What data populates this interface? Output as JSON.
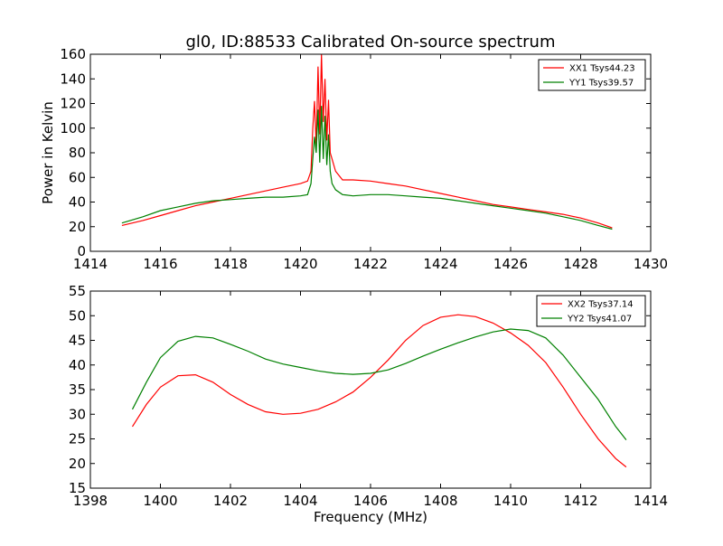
{
  "title": "gl0, ID:88533 Calibrated On-source spectrum",
  "chart_data": [
    {
      "type": "line",
      "title": "gl0, ID:88533 Calibrated On-source spectrum",
      "xlabel": "",
      "ylabel": "Power in Kelvin",
      "xlim": [
        1414,
        1430
      ],
      "ylim": [
        0,
        160
      ],
      "xticks": [
        1414,
        1416,
        1418,
        1420,
        1422,
        1424,
        1426,
        1428,
        1430
      ],
      "yticks": [
        0,
        20,
        40,
        60,
        80,
        100,
        120,
        140,
        160
      ],
      "grid": false,
      "legend_position": "top-right",
      "series": [
        {
          "name": "XX1 Tsys44.23",
          "color": "#ff0000",
          "x": [
            1414.9,
            1415.5,
            1416.0,
            1416.5,
            1417.0,
            1417.5,
            1418.0,
            1418.5,
            1419.0,
            1419.5,
            1420.0,
            1420.2,
            1420.3,
            1420.35,
            1420.4,
            1420.45,
            1420.5,
            1420.55,
            1420.6,
            1420.65,
            1420.7,
            1420.75,
            1420.8,
            1420.85,
            1420.9,
            1421.0,
            1421.2,
            1421.5,
            1422.0,
            1422.5,
            1423.0,
            1423.5,
            1424.0,
            1424.5,
            1425.0,
            1425.5,
            1426.0,
            1426.5,
            1427.0,
            1427.5,
            1428.0,
            1428.5,
            1428.9
          ],
          "y": [
            21,
            25,
            29,
            33,
            37,
            40,
            43,
            46,
            49,
            52,
            55,
            57,
            65,
            100,
            122,
            85,
            150,
            95,
            160,
            105,
            140,
            90,
            123,
            80,
            75,
            65,
            58,
            58,
            57,
            55,
            53,
            50,
            47,
            44,
            41,
            38,
            36,
            34,
            32,
            30,
            27,
            23,
            19
          ]
        },
        {
          "name": "YY1 Tsys39.57",
          "color": "#008000",
          "x": [
            1414.9,
            1415.5,
            1416.0,
            1416.5,
            1417.0,
            1417.5,
            1418.0,
            1418.5,
            1419.0,
            1419.5,
            1420.0,
            1420.2,
            1420.3,
            1420.35,
            1420.4,
            1420.45,
            1420.5,
            1420.55,
            1420.6,
            1420.65,
            1420.7,
            1420.75,
            1420.8,
            1420.85,
            1420.9,
            1421.0,
            1421.2,
            1421.5,
            1422.0,
            1422.5,
            1423.0,
            1423.5,
            1424.0,
            1424.5,
            1425.0,
            1425.5,
            1426.0,
            1426.5,
            1427.0,
            1427.5,
            1428.0,
            1428.5,
            1428.9
          ],
          "y": [
            23,
            28,
            33,
            36,
            39,
            41,
            42,
            43,
            44,
            44,
            45,
            46,
            55,
            75,
            93,
            80,
            115,
            72,
            118,
            75,
            110,
            70,
            95,
            65,
            55,
            50,
            46,
            45,
            46,
            46,
            45,
            44,
            43,
            41,
            39,
            37,
            35,
            33,
            31,
            28,
            25,
            21,
            18
          ]
        }
      ]
    },
    {
      "type": "line",
      "title": "",
      "xlabel": "Frequency (MHz)",
      "ylabel": "",
      "xlim": [
        1398,
        1414
      ],
      "ylim": [
        15,
        55
      ],
      "xticks": [
        1398,
        1400,
        1402,
        1404,
        1406,
        1408,
        1410,
        1412,
        1414
      ],
      "yticks": [
        15,
        20,
        25,
        30,
        35,
        40,
        45,
        50,
        55
      ],
      "grid": false,
      "legend_position": "top-right",
      "series": [
        {
          "name": "XX2 Tsys37.14",
          "color": "#ff0000",
          "x": [
            1399.2,
            1399.6,
            1400.0,
            1400.5,
            1401.0,
            1401.5,
            1402.0,
            1402.5,
            1403.0,
            1403.5,
            1404.0,
            1404.5,
            1405.0,
            1405.5,
            1406.0,
            1406.5,
            1407.0,
            1407.5,
            1408.0,
            1408.5,
            1409.0,
            1409.5,
            1410.0,
            1410.5,
            1411.0,
            1411.5,
            1412.0,
            1412.5,
            1413.0,
            1413.3
          ],
          "y": [
            27.5,
            32,
            35.5,
            37.8,
            38,
            36.5,
            34,
            32,
            30.5,
            30,
            30.2,
            31,
            32.5,
            34.5,
            37.5,
            41,
            45,
            48,
            49.7,
            50.2,
            49.8,
            48.5,
            46.5,
            44,
            40.5,
            35.5,
            30,
            25,
            21,
            19.3
          ]
        },
        {
          "name": "YY2 Tsys41.07",
          "color": "#008000",
          "x": [
            1399.2,
            1399.6,
            1400.0,
            1400.5,
            1401.0,
            1401.5,
            1402.0,
            1402.5,
            1403.0,
            1403.5,
            1404.0,
            1404.5,
            1405.0,
            1405.5,
            1406.0,
            1406.5,
            1407.0,
            1407.5,
            1408.0,
            1408.5,
            1409.0,
            1409.5,
            1410.0,
            1410.5,
            1411.0,
            1411.5,
            1412.0,
            1412.5,
            1413.0,
            1413.3
          ],
          "y": [
            31,
            36.5,
            41.5,
            44.8,
            45.8,
            45.5,
            44.2,
            42.8,
            41.2,
            40.2,
            39.5,
            38.8,
            38.3,
            38.1,
            38.3,
            39,
            40.3,
            41.8,
            43.2,
            44.5,
            45.7,
            46.7,
            47.3,
            47,
            45.5,
            42,
            37.5,
            33,
            27.5,
            24.8
          ]
        }
      ]
    }
  ]
}
